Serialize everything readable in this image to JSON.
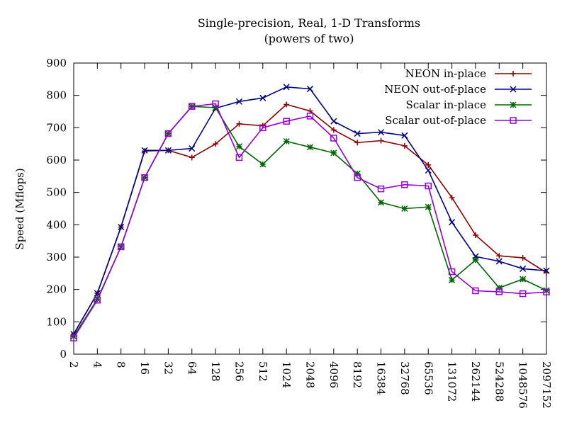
{
  "chart_data": {
    "type": "line",
    "title": "Single-precision, Real, 1-D Transforms",
    "subtitle": "(powers of two)",
    "xlabel": "",
    "ylabel": "Speed (Mflops)",
    "ylim": [
      0,
      900
    ],
    "yticks": [
      0,
      100,
      200,
      300,
      400,
      500,
      600,
      700,
      800,
      900
    ],
    "categories": [
      "2",
      "4",
      "8",
      "16",
      "32",
      "64",
      "128",
      "256",
      "512",
      "1024",
      "2048",
      "4096",
      "8192",
      "16384",
      "32768",
      "65536",
      "131072",
      "262144",
      "524288",
      "1048576",
      "2097152"
    ],
    "grid": false,
    "legend_position": "top-right",
    "series": [
      {
        "name": "NEON in-place",
        "color": "#8b0000",
        "marker": "plus",
        "values": [
          62,
          188,
          393,
          628,
          630,
          608,
          650,
          712,
          706,
          772,
          752,
          693,
          654,
          660,
          644,
          585,
          484,
          368,
          304,
          298,
          252
        ]
      },
      {
        "name": "NEON out-of-place",
        "color": "#00007f",
        "marker": "cross",
        "values": [
          62,
          188,
          393,
          630,
          630,
          636,
          760,
          781,
          792,
          826,
          820,
          720,
          682,
          686,
          676,
          568,
          408,
          302,
          287,
          264,
          258
        ]
      },
      {
        "name": "Scalar in-place",
        "color": "#006400",
        "marker": "star",
        "values": [
          55,
          170,
          332,
          546,
          682,
          766,
          762,
          642,
          587,
          658,
          640,
          622,
          558,
          469,
          450,
          455,
          229,
          291,
          205,
          232,
          197
        ]
      },
      {
        "name": "Scalar out-of-place",
        "color": "#9400d3",
        "marker": "square",
        "values": [
          50,
          167,
          332,
          546,
          682,
          766,
          774,
          608,
          700,
          720,
          736,
          668,
          546,
          511,
          524,
          520,
          255,
          196,
          193,
          187,
          192
        ]
      }
    ]
  }
}
